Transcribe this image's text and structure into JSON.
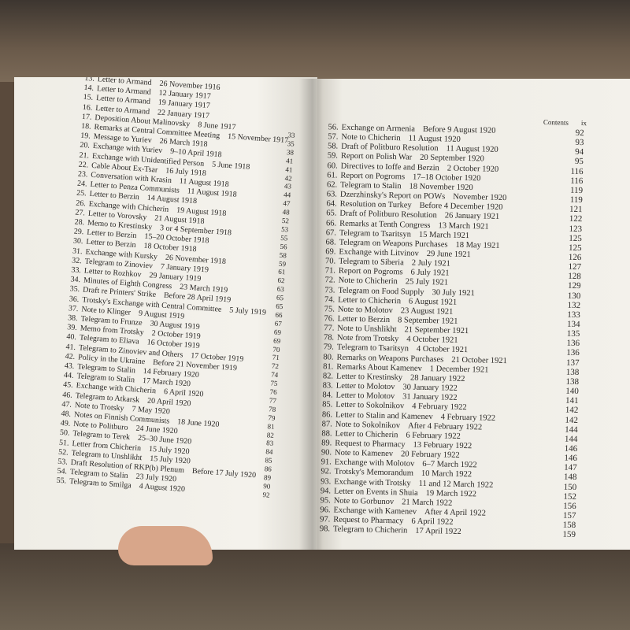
{
  "left_page": {
    "entries": [
      {
        "number": "13.",
        "title": "Letter to Armand",
        "date": "26 November 1916"
      },
      {
        "number": "14.",
        "title": "Letter to Armand",
        "date": "12 January 1917"
      },
      {
        "number": "15.",
        "title": "Letter to Armand",
        "date": "19 January 1917"
      },
      {
        "number": "16.",
        "title": "Letter to Armand",
        "date": "22 January 1917"
      },
      {
        "number": "17.",
        "title": "Deposition About Malinovsky",
        "date": "8 June 1917"
      },
      {
        "number": "18.",
        "title": "Remarks at Central Committee Meeting",
        "date": "15 November 1917"
      },
      {
        "number": "19.",
        "title": "Message to Yuriev",
        "date": "26 March 1918"
      },
      {
        "number": "20.",
        "title": "Exchange with Yuriev",
        "date": "9–10 April 1918"
      },
      {
        "number": "21.",
        "title": "Exchange with Unidentified Person",
        "date": "5 June 1918"
      },
      {
        "number": "22.",
        "title": "Cable About Ex-Tsar",
        "date": "16 July 1918"
      },
      {
        "number": "23.",
        "title": "Conversation with Krasin",
        "date": "11 August 1918"
      },
      {
        "number": "24.",
        "title": "Letter to Penza Communists",
        "date": "11 August 1918"
      },
      {
        "number": "25.",
        "title": "Letter to Berzin",
        "date": "14 August 1918"
      },
      {
        "number": "26.",
        "title": "Exchange with Chicherin",
        "date": "19 August 1918"
      },
      {
        "number": "27.",
        "title": "Letter to Vorovsky",
        "date": "21 August 1918"
      },
      {
        "number": "28.",
        "title": "Memo to Krestinsky",
        "date": "3 or 4 September 1918"
      },
      {
        "number": "29.",
        "title": "Letter to Berzin",
        "date": "15–20 October 1918"
      },
      {
        "number": "30.",
        "title": "Letter to Berzin",
        "date": "18 October 1918"
      },
      {
        "number": "31.",
        "title": "Exchange with Kursky",
        "date": "26 November 1918"
      },
      {
        "number": "32.",
        "title": "Telegram to Zinoviev",
        "date": "7 January 1919"
      },
      {
        "number": "33.",
        "title": "Letter to Rozhkov",
        "date": "29 January 1919"
      },
      {
        "number": "34.",
        "title": "Minutes of Eighth Congress",
        "date": "23 March 1919"
      },
      {
        "number": "35.",
        "title": "Draft re Printers' Strike",
        "date": "Before 28 April 1919"
      },
      {
        "number": "36.",
        "title": "Trotsky's Exchange with Central Committee",
        "date": "5 July 1919"
      },
      {
        "number": "37.",
        "title": "Note to Klinger",
        "date": "9 August 1919"
      },
      {
        "number": "38.",
        "title": "Telegram to Frunze",
        "date": "30 August 1919"
      },
      {
        "number": "39.",
        "title": "Memo from Trotsky",
        "date": "2 October 1919"
      },
      {
        "number": "40.",
        "title": "Telegram to Eliava",
        "date": "16 October 1919"
      },
      {
        "number": "41.",
        "title": "Telegram to Zinoviev and Others",
        "date": "17 October 1919"
      },
      {
        "number": "42.",
        "title": "Policy in the Ukraine",
        "date": "Before 21 November 1919"
      },
      {
        "number": "43.",
        "title": "Telegram to Stalin",
        "date": "14 February 1920"
      },
      {
        "number": "44.",
        "title": "Telegram to Stalin",
        "date": "17 March 1920"
      },
      {
        "number": "45.",
        "title": "Exchange with Chicherin",
        "date": "6 April 1920"
      },
      {
        "number": "46.",
        "title": "Telegram to Atkarsk",
        "date": "20 April 1920"
      },
      {
        "number": "47.",
        "title": "Note to Trotsky",
        "date": "7 May 1920"
      },
      {
        "number": "48.",
        "title": "Notes on Finnish Communists",
        "date": "18 June 1920"
      },
      {
        "number": "49.",
        "title": "Note to Politburo",
        "date": "24 June 1920"
      },
      {
        "number": "50.",
        "title": "Telegram to Terek",
        "date": "25–30 June 1920"
      },
      {
        "number": "51.",
        "title": "Letter from Chicherin",
        "date": "15 July 1920"
      },
      {
        "number": "52.",
        "title": "Telegram to Unshlikht",
        "date": "15 July 1920"
      },
      {
        "number": "53.",
        "title": "Draft Resolution of RKP(b) Plenum",
        "date": "Before 17 July 1920"
      },
      {
        "number": "54.",
        "title": "Telegram to Stalin",
        "date": "23 July 1920"
      },
      {
        "number": "55.",
        "title": "Telegram to Smilga",
        "date": "4 August 1920"
      }
    ],
    "page_numbers": [
      33,
      35,
      38,
      41,
      41,
      42,
      43,
      44,
      47,
      48,
      52,
      53,
      55,
      56,
      58,
      59,
      61,
      62,
      63,
      65,
      65,
      66,
      67,
      69,
      69,
      70,
      71,
      72,
      74,
      75,
      76,
      77,
      78,
      79,
      81,
      82,
      83,
      84,
      85,
      86,
      89,
      90,
      92
    ]
  },
  "right_page": {
    "header": {
      "label": "Contents",
      "page": "ix"
    },
    "entries": [
      {
        "number": "56.",
        "title": "Exchange on Armenia",
        "date": "Before 9 August 1920",
        "page": 92
      },
      {
        "number": "57.",
        "title": "Note to Chicherin",
        "date": "11 August 1920",
        "page": 93
      },
      {
        "number": "58.",
        "title": "Draft of Politburo Resolution",
        "date": "11 August 1920",
        "page": 94
      },
      {
        "number": "59.",
        "title": "Report on Polish War",
        "date": "20 September 1920",
        "page": 95
      },
      {
        "number": "60.",
        "title": "Directives to Ioffe and Berzin",
        "date": "2 October 1920",
        "page": 116
      },
      {
        "number": "61.",
        "title": "Report on Pogroms",
        "date": "17–18 October 1920",
        "page": 116
      },
      {
        "number": "62.",
        "title": "Telegram to Stalin",
        "date": "18 November 1920",
        "page": 119
      },
      {
        "number": "63.",
        "title": "Dzerzhinsky's Report on POWs",
        "date": "November 1920",
        "page": 119
      },
      {
        "number": "64.",
        "title": "Resolution on Turkey",
        "date": "Before 4 December 1920",
        "page": 121
      },
      {
        "number": "65.",
        "title": "Draft of Politburo Resolution",
        "date": "26 January 1921",
        "page": 122
      },
      {
        "number": "66.",
        "title": "Remarks at Tenth Congress",
        "date": "13 March 1921",
        "page": 123
      },
      {
        "number": "67.",
        "title": "Telegram to Tsaritsyn",
        "date": "15 March 1921",
        "page": 125
      },
      {
        "number": "68.",
        "title": "Telegram on Weapons Purchases",
        "date": "18 May 1921",
        "page": 125
      },
      {
        "number": "69.",
        "title": "Exchange with Litvinov",
        "date": "29 June 1921",
        "page": 126
      },
      {
        "number": "70.",
        "title": "Telegram to Siberia",
        "date": "2 July 1921",
        "page": 127
      },
      {
        "number": "71.",
        "title": "Report on Pogroms",
        "date": "6 July 1921",
        "page": 128
      },
      {
        "number": "72.",
        "title": "Note to Chicherin",
        "date": "25 July 1921",
        "page": 129
      },
      {
        "number": "73.",
        "title": "Telegram on Food Supply",
        "date": "30 July 1921",
        "page": 130
      },
      {
        "number": "74.",
        "title": "Letter to Chicherin",
        "date": "6 August 1921",
        "page": 132
      },
      {
        "number": "75.",
        "title": "Note to Molotov",
        "date": "23 August 1921",
        "page": 133
      },
      {
        "number": "76.",
        "title": "Letter to Berzin",
        "date": "8 September 1921",
        "page": 134
      },
      {
        "number": "77.",
        "title": "Note to Unshlikht",
        "date": "21 September 1921",
        "page": 135
      },
      {
        "number": "78.",
        "title": "Note from Trotsky",
        "date": "4 October 1921",
        "page": 136
      },
      {
        "number": "79.",
        "title": "Telegram to Tsaritsyn",
        "date": "4 October 1921",
        "page": 136
      },
      {
        "number": "80.",
        "title": "Remarks on Weapons Purchases",
        "date": "21 October 1921",
        "page": 137
      },
      {
        "number": "81.",
        "title": "Remarks About Kamenev",
        "date": "1 December 1921",
        "page": 138
      },
      {
        "number": "82.",
        "title": "Letter to Krestinsky",
        "date": "28 January 1922",
        "page": 138
      },
      {
        "number": "83.",
        "title": "Letter to Molotov",
        "date": "30 January 1922",
        "page": 140
      },
      {
        "number": "84.",
        "title": "Letter to Molotov",
        "date": "31 January 1922",
        "page": 141
      },
      {
        "number": "85.",
        "title": "Letter to Sokolnikov",
        "date": "4 February 1922",
        "page": 142
      },
      {
        "number": "86.",
        "title": "Letter to Stalin and Kamenev",
        "date": "4 February 1922",
        "page": 142
      },
      {
        "number": "87.",
        "title": "Note to Sokolnikov",
        "date": "After 4 February 1922",
        "page": 144
      },
      {
        "number": "88.",
        "title": "Letter to Chicherin",
        "date": "6 February 1922",
        "page": 144
      },
      {
        "number": "89.",
        "title": "Request to Pharmacy",
        "date": "13 February 1922",
        "page": 146
      },
      {
        "number": "90.",
        "title": "Note to Kamenev",
        "date": "20 February 1922",
        "page": 146
      },
      {
        "number": "91.",
        "title": "Exchange with Molotov",
        "date": "6–7 March 1922",
        "page": 147
      },
      {
        "number": "92.",
        "title": "Trotsky's Memorandum",
        "date": "10 March 1922",
        "page": 148
      },
      {
        "number": "93.",
        "title": "Exchange with Trotsky",
        "date": "11 and 12 March 1922",
        "page": 150
      },
      {
        "number": "94.",
        "title": "Letter on Events in Shuia",
        "date": "19 March 1922",
        "page": 152
      },
      {
        "number": "95.",
        "title": "Note to Gorbunov",
        "date": "21 March 1922",
        "page": 156
      },
      {
        "number": "96.",
        "title": "Exchange with Kamenev",
        "date": "After 4 April 1922",
        "page": 157
      },
      {
        "number": "97.",
        "title": "Request to Pharmacy",
        "date": "6 April 1922",
        "page": 158
      },
      {
        "number": "98.",
        "title": "Telegram to Chicherin",
        "date": "17 April 1922",
        "page": 159
      }
    ]
  }
}
